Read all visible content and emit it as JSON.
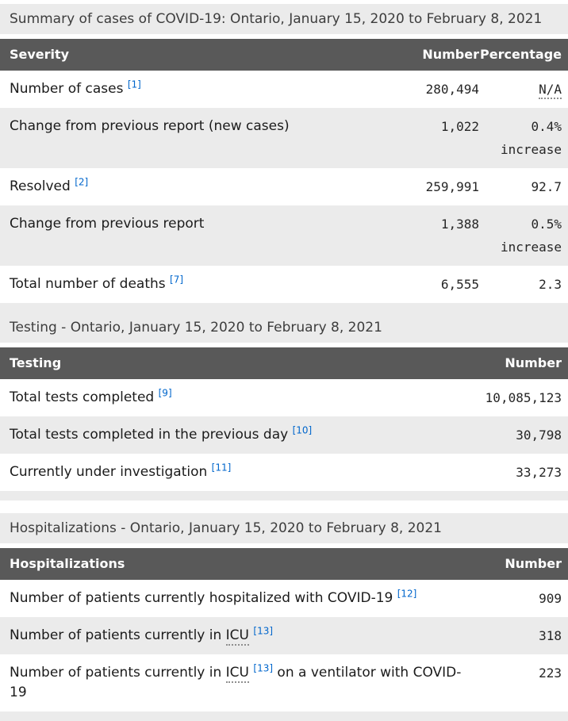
{
  "colors": {
    "header_bg": "#595959",
    "header_text": "#ffffff",
    "row_stripe": "#ebebeb",
    "caption_bg": "#ebebeb",
    "link_blue": "#0066cc",
    "body_text": "#1b1b1b"
  },
  "tables": [
    {
      "caption": "Summary of cases of COVID-19: Ontario, January 15, 2020 to February 8, 2021",
      "columns": [
        "Severity",
        "Number",
        "Percentage"
      ],
      "rows": [
        {
          "label_parts": [
            {
              "text": "Number of cases "
            },
            {
              "ref": "[1]"
            }
          ],
          "number": "280,494",
          "pct_lines": [
            {
              "text": "N/A",
              "abbr": true
            }
          ]
        },
        {
          "label_parts": [
            {
              "text": "Change from previous report (new cases)"
            }
          ],
          "number": "1,022",
          "pct_lines": [
            {
              "text": "0.4%"
            },
            {
              "text": "increase"
            }
          ]
        },
        {
          "label_parts": [
            {
              "text": "Resolved "
            },
            {
              "ref": "[2]"
            }
          ],
          "number": "259,991",
          "pct_lines": [
            {
              "text": "92.7"
            }
          ]
        },
        {
          "label_parts": [
            {
              "text": "Change from previous report"
            }
          ],
          "number": "1,388",
          "pct_lines": [
            {
              "text": "0.5%"
            },
            {
              "text": "increase"
            }
          ]
        },
        {
          "label_parts": [
            {
              "text": "Total number of deaths "
            },
            {
              "ref": "[7]"
            }
          ],
          "number": "6,555",
          "pct_lines": [
            {
              "text": "2.3"
            }
          ]
        }
      ]
    },
    {
      "caption": "Testing - Ontario, January 15, 2020 to February 8, 2021",
      "columns": [
        "Testing",
        "Number"
      ],
      "rows": [
        {
          "label_parts": [
            {
              "text": "Total tests completed "
            },
            {
              "ref": "[9]"
            }
          ],
          "number": "10,085,123"
        },
        {
          "label_parts": [
            {
              "text": "Total tests completed in the previous day "
            },
            {
              "ref": "[10]"
            }
          ],
          "number": "30,798"
        },
        {
          "label_parts": [
            {
              "text": "Currently under investigation "
            },
            {
              "ref": "[11]"
            }
          ],
          "number": "33,273"
        }
      ]
    },
    {
      "caption": "Hospitalizations - Ontario, January 15, 2020 to February 8, 2021",
      "columns": [
        "Hospitalizations",
        "Number"
      ],
      "rows": [
        {
          "label_parts": [
            {
              "text": "Number of patients currently hospitalized with COVID-19 "
            },
            {
              "ref": "[12]"
            }
          ],
          "number": "909"
        },
        {
          "label_parts": [
            {
              "text": "Number of patients currently in "
            },
            {
              "abbr": "ICU"
            },
            {
              "text": " "
            },
            {
              "ref": "[13]"
            }
          ],
          "number": "318"
        },
        {
          "label_parts": [
            {
              "text": "Number of patients currently in "
            },
            {
              "abbr": "ICU"
            },
            {
              "text": " "
            },
            {
              "ref": "[13]"
            },
            {
              "text": " on a ventilator with COVID-19"
            }
          ],
          "number": "223"
        }
      ]
    }
  ]
}
